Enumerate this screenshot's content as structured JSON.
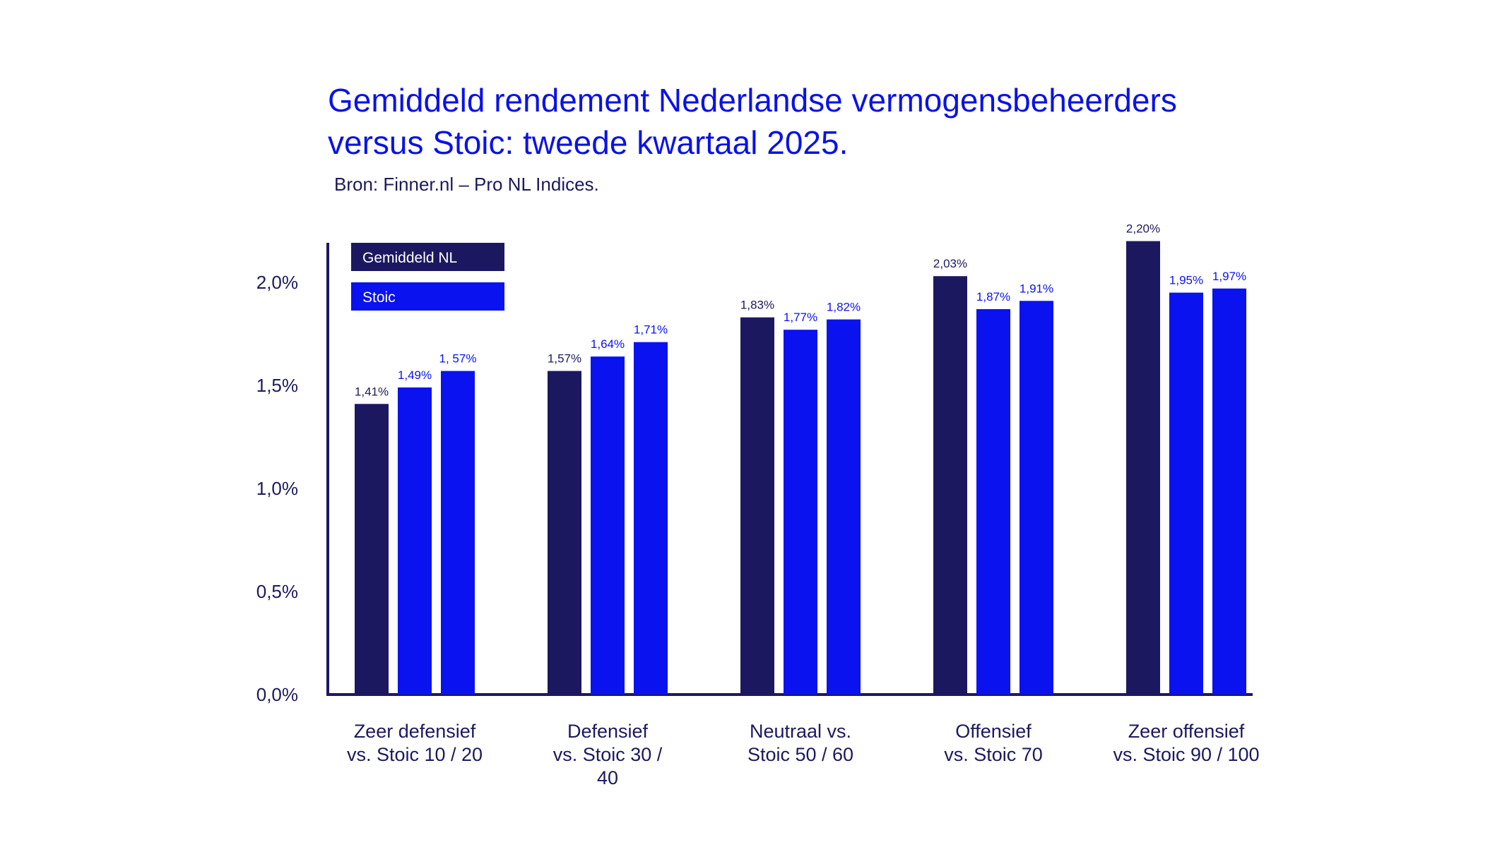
{
  "chart_data": {
    "type": "bar",
    "title": [
      "Gemiddeld rendement Nederlandse vermogensbeheerders",
      "versus Stoic: tweede kwartaal 2025."
    ],
    "subtitle": "Bron: Finner.nl – Pro NL Indices.",
    "xlabel": "",
    "ylabel": "",
    "ylim": [
      0,
      2.2
    ],
    "yticks": [
      {
        "value": 0.0,
        "label": "0,0%"
      },
      {
        "value": 0.5,
        "label": "0,5%"
      },
      {
        "value": 1.0,
        "label": "1,0%"
      },
      {
        "value": 1.5,
        "label": "1,5%"
      },
      {
        "value": 2.0,
        "label": "2,0%"
      }
    ],
    "grid": false,
    "legend": {
      "position": "top-left",
      "entries": [
        {
          "name": "Gemiddeld NL",
          "color": "#1c1860"
        },
        {
          "name": "Stoic",
          "color": "#0a12f0"
        }
      ]
    },
    "colors": {
      "gemiddeld": "#1c1860",
      "stoic": "#0a12f0",
      "axis": "#1c1860"
    },
    "groups": [
      {
        "label": [
          "Zeer defensief",
          "vs. Stoic 10 / 20"
        ],
        "bars": [
          {
            "series": "Gemiddeld NL",
            "value": 1.41,
            "label": "1,41%"
          },
          {
            "series": "Stoic",
            "value": 1.49,
            "label": "1,49%"
          },
          {
            "series": "Stoic",
            "value": 1.57,
            "label": "1, 57%"
          }
        ]
      },
      {
        "label": [
          "Defensief",
          "vs. Stoic 30 /",
          "40"
        ],
        "bars": [
          {
            "series": "Gemiddeld NL",
            "value": 1.57,
            "label": "1,57%"
          },
          {
            "series": "Stoic",
            "value": 1.64,
            "label": "1,64%"
          },
          {
            "series": "Stoic",
            "value": 1.71,
            "label": "1,71%"
          }
        ]
      },
      {
        "label": [
          "Neutraal vs.",
          "Stoic 50 / 60"
        ],
        "bars": [
          {
            "series": "Gemiddeld NL",
            "value": 1.83,
            "label": "1,83%"
          },
          {
            "series": "Stoic",
            "value": 1.77,
            "label": "1,77%"
          },
          {
            "series": "Stoic",
            "value": 1.82,
            "label": "1,82%"
          }
        ]
      },
      {
        "label": [
          "Offensief",
          "vs. Stoic 70"
        ],
        "bars": [
          {
            "series": "Gemiddeld NL",
            "value": 2.03,
            "label": "2,03%"
          },
          {
            "series": "Stoic",
            "value": 1.87,
            "label": "1,87%"
          },
          {
            "series": "Stoic",
            "value": 1.91,
            "label": "1,91%"
          }
        ]
      },
      {
        "label": [
          "Zeer offensief",
          "vs. Stoic 90 / 100"
        ],
        "bars": [
          {
            "series": "Gemiddeld NL",
            "value": 2.2,
            "label": "2,20%"
          },
          {
            "series": "Stoic",
            "value": 1.95,
            "label": "1,95%"
          },
          {
            "series": "Stoic",
            "value": 1.97,
            "label": "1,97%"
          }
        ]
      }
    ]
  }
}
